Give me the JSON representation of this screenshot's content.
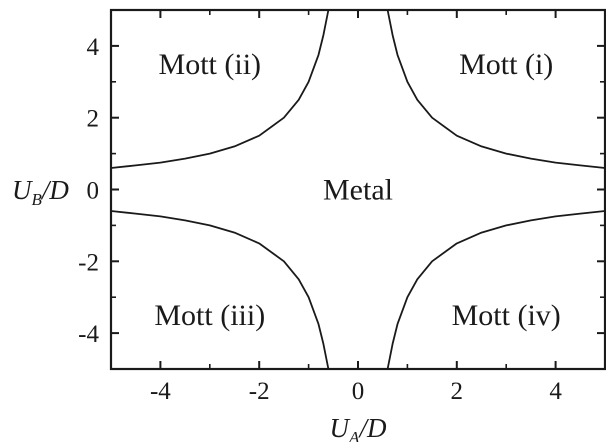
{
  "chart_data": {
    "type": "line",
    "title": "",
    "xlabel": {
      "main": "U",
      "sub": "A",
      "suffix": "/D"
    },
    "ylabel": {
      "main": "U",
      "sub": "B",
      "suffix": "/D"
    },
    "xlim": [
      -5,
      5
    ],
    "ylim": [
      -5,
      5
    ],
    "xticks": [
      -4,
      -2,
      0,
      2,
      4
    ],
    "yticks": [
      4,
      2,
      0,
      -2,
      -4
    ],
    "xtick_labels": [
      "-4",
      "-2",
      "0",
      "2",
      "4"
    ],
    "ytick_labels": [
      "4",
      "2",
      "0",
      "-2",
      "-4"
    ],
    "grid": false,
    "legend": "none",
    "series": [
      {
        "x": [
          0.6,
          0.7,
          0.8,
          1.0,
          1.2,
          1.5,
          2.0,
          2.5,
          3.0,
          3.5,
          4.0,
          4.5,
          5.0
        ],
        "y": [
          5.0,
          4.3,
          3.75,
          3.0,
          2.5,
          2.0,
          1.5,
          1.2,
          1.0,
          0.86,
          0.75,
          0.67,
          0.6
        ]
      },
      {
        "x": [
          -0.6,
          -0.7,
          -0.8,
          -1.0,
          -1.2,
          -1.5,
          -2.0,
          -2.5,
          -3.0,
          -3.5,
          -4.0,
          -4.5,
          -5.0
        ],
        "y": [
          5.0,
          4.3,
          3.75,
          3.0,
          2.5,
          2.0,
          1.5,
          1.2,
          1.0,
          0.86,
          0.75,
          0.67,
          0.6
        ]
      },
      {
        "x": [
          -0.6,
          -0.7,
          -0.8,
          -1.0,
          -1.2,
          -1.5,
          -2.0,
          -2.5,
          -3.0,
          -3.5,
          -4.0,
          -4.5,
          -5.0
        ],
        "y": [
          -5.0,
          -4.3,
          -3.75,
          -3.0,
          -2.5,
          -2.0,
          -1.5,
          -1.2,
          -1.0,
          -0.86,
          -0.75,
          -0.67,
          -0.6
        ]
      },
      {
        "x": [
          0.6,
          0.7,
          0.8,
          1.0,
          1.2,
          1.5,
          2.0,
          2.5,
          3.0,
          3.5,
          4.0,
          4.5,
          5.0
        ],
        "y": [
          -5.0,
          -4.3,
          -3.75,
          -3.0,
          -2.5,
          -2.0,
          -1.5,
          -1.2,
          -1.0,
          -0.86,
          -0.75,
          -0.67,
          -0.6
        ]
      }
    ],
    "annotations": [
      {
        "text": "Mott (i)",
        "x": 3.0,
        "y": 3.5
      },
      {
        "text": "Mott (ii)",
        "x": -3.0,
        "y": 3.5
      },
      {
        "text": "Metal",
        "x": 0.0,
        "y": 0.0
      },
      {
        "text": "Mott (iii)",
        "x": -3.0,
        "y": -3.5
      },
      {
        "text": "Mott (iv)",
        "x": 3.0,
        "y": -3.5
      }
    ]
  }
}
